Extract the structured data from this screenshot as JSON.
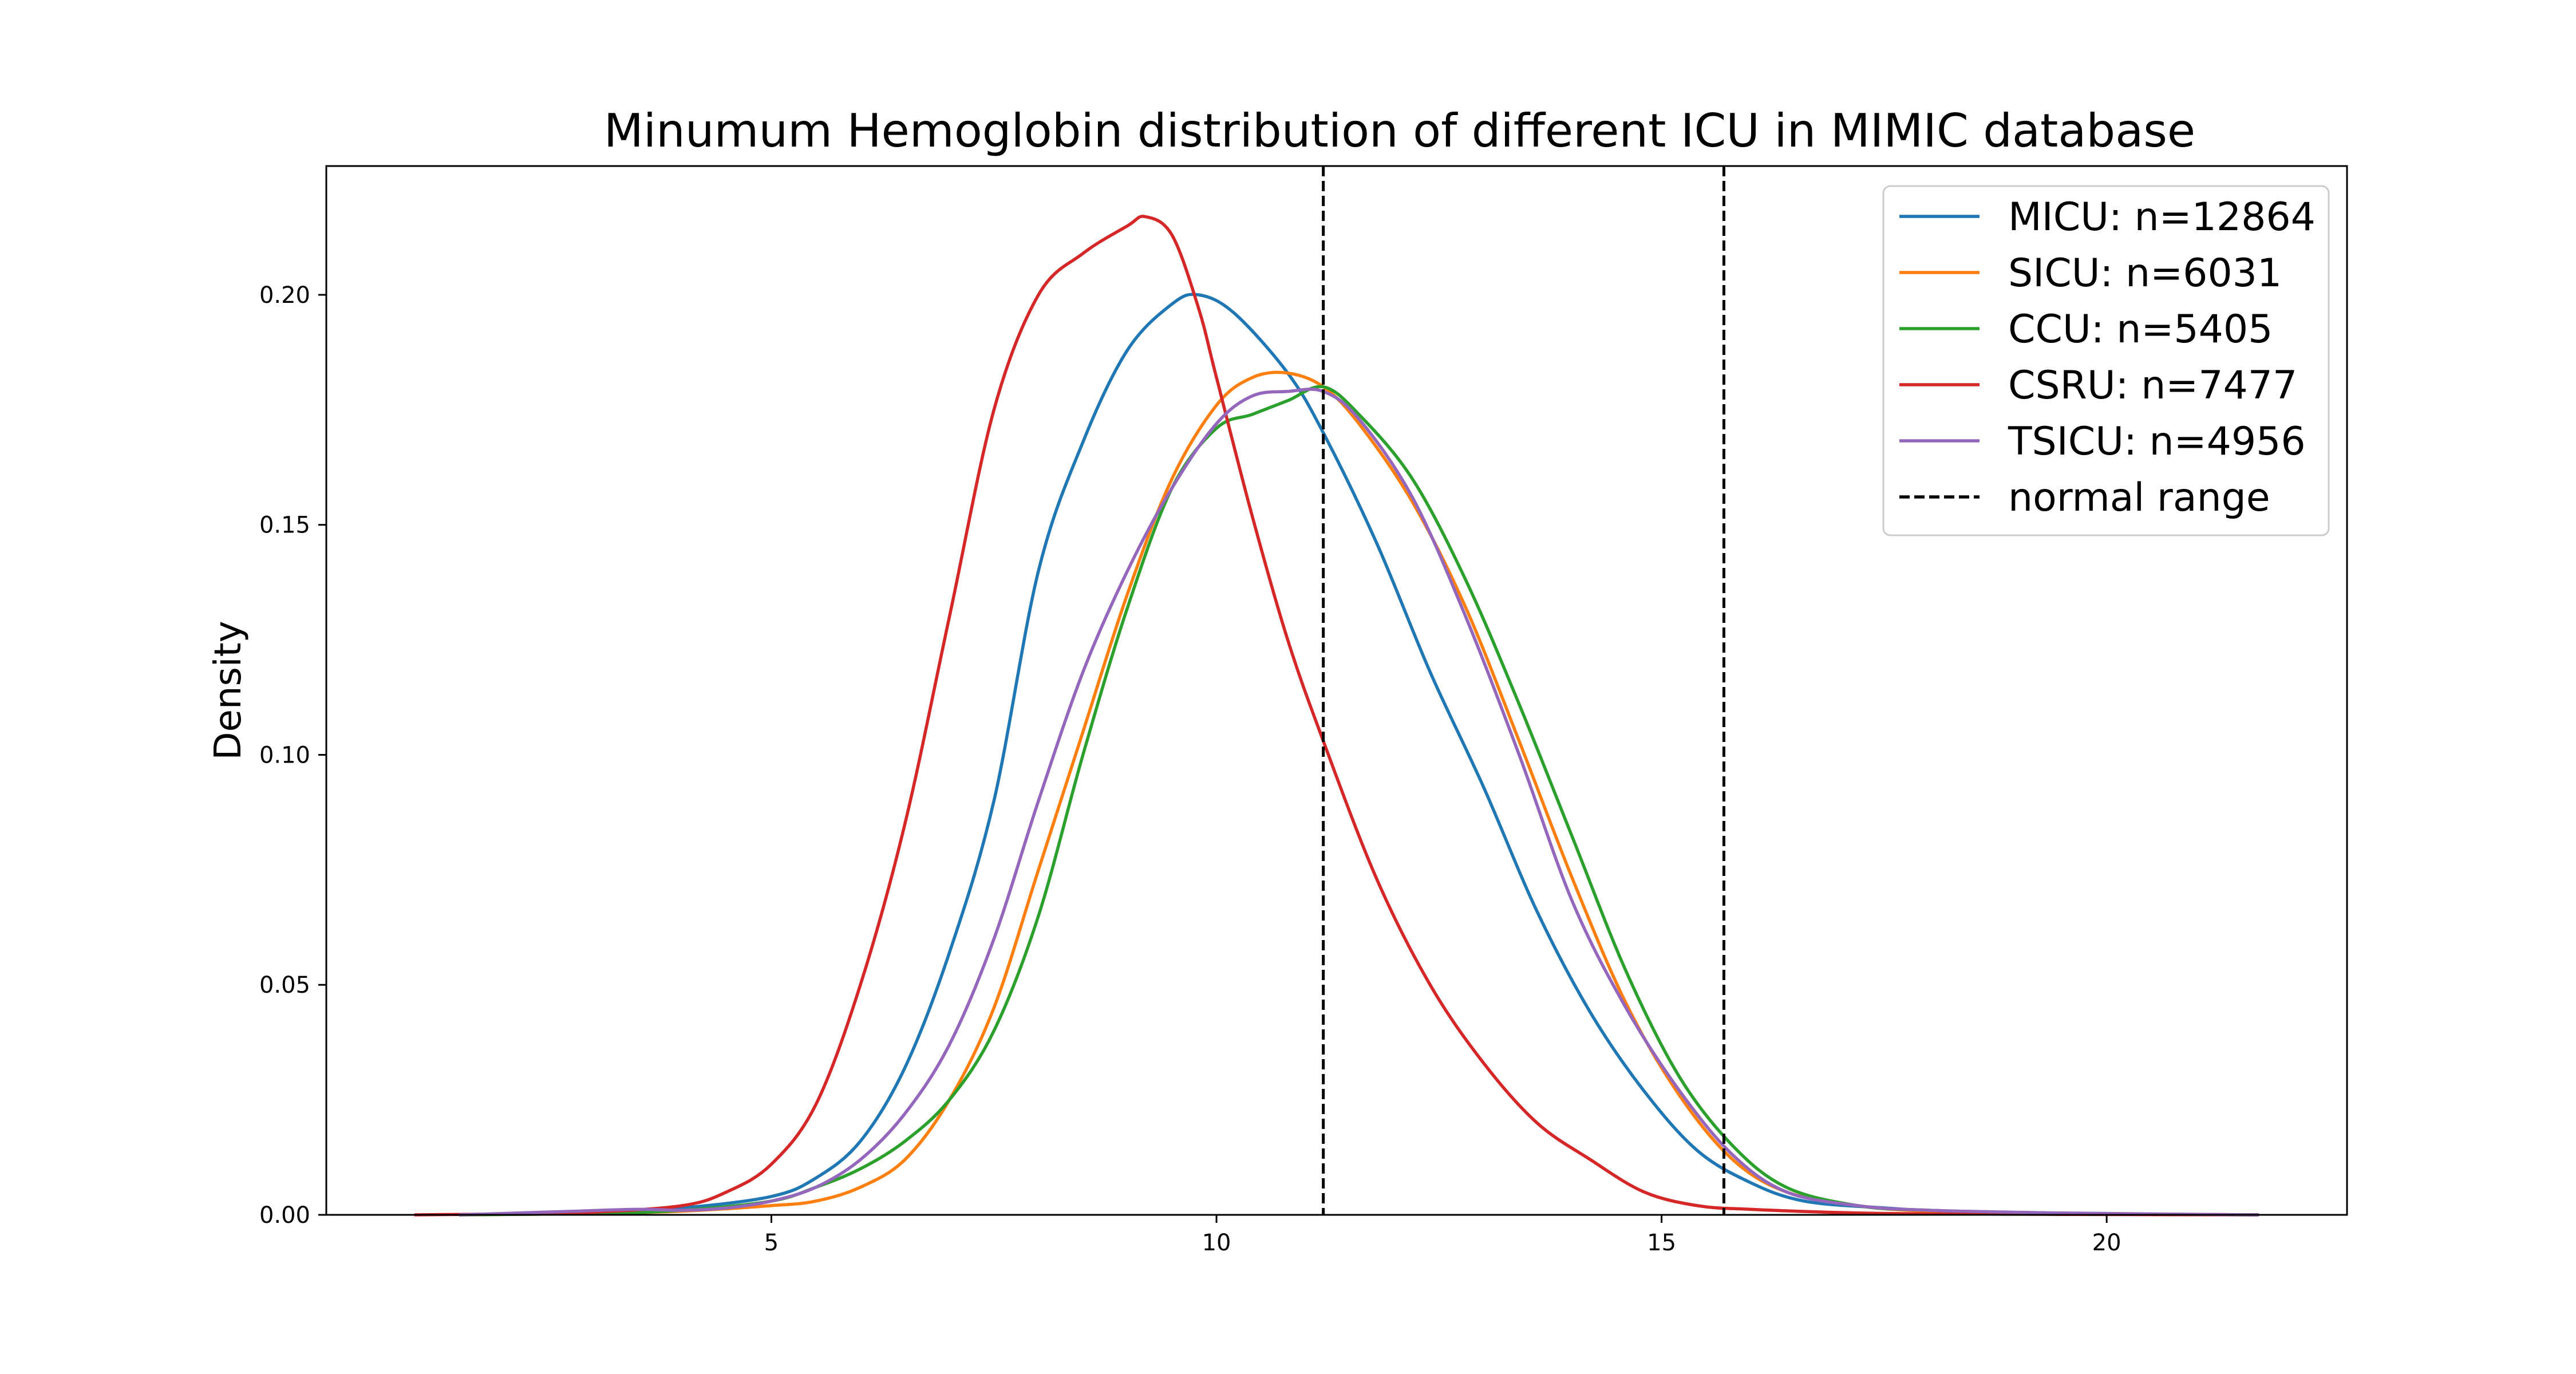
{
  "chart_data": {
    "type": "line",
    "title": "Minumum Hemoglobin distribution of different ICU in MIMIC database",
    "xlabel": "",
    "ylabel": "Density",
    "xlim": [
      0,
      22.7
    ],
    "ylim": [
      0,
      0.228
    ],
    "x_ticks": [
      {
        "value": 5,
        "label": "5"
      },
      {
        "value": 10,
        "label": "10"
      },
      {
        "value": 15,
        "label": "15"
      },
      {
        "value": 20,
        "label": "20"
      }
    ],
    "y_ticks": [
      {
        "value": 0.0,
        "label": "0.00"
      },
      {
        "value": 0.05,
        "label": "0.05"
      },
      {
        "value": 0.1,
        "label": "0.10"
      },
      {
        "value": 0.15,
        "label": "0.15"
      },
      {
        "value": 0.2,
        "label": "0.20"
      }
    ],
    "grid": false,
    "legend_position": "top-right",
    "series": [
      {
        "name": "MICU: n=12864",
        "color": "#1f77b4",
        "x": [
          1.5,
          3,
          4,
          5,
          5.5,
          6,
          6.5,
          7,
          7.5,
          8,
          8.5,
          9,
          9.5,
          9.8,
          10.2,
          10.8,
          11.2,
          11.8,
          12.4,
          13,
          13.6,
          14.2,
          14.8,
          15.4,
          16,
          16.6,
          17.5,
          18.5,
          20,
          21.7
        ],
        "y": [
          0.0,
          0.0005,
          0.0015,
          0.004,
          0.008,
          0.016,
          0.032,
          0.057,
          0.09,
          0.14,
          0.168,
          0.188,
          0.198,
          0.2,
          0.196,
          0.183,
          0.17,
          0.146,
          0.118,
          0.093,
          0.066,
          0.044,
          0.027,
          0.014,
          0.007,
          0.003,
          0.0015,
          0.0005,
          0.0002,
          0.0
        ],
        "label_key": "chart_data.series.0.name"
      },
      {
        "name": "SICU: n=6031",
        "color": "#ff7f0e",
        "x": [
          1.5,
          3,
          4,
          5,
          5.5,
          6,
          6.5,
          7,
          7.5,
          8,
          8.5,
          9,
          9.5,
          10,
          10.4,
          10.8,
          11.2,
          11.6,
          12.2,
          12.8,
          13.4,
          14,
          14.6,
          15.2,
          15.8,
          16.4,
          17.2,
          18,
          19.5,
          21.7
        ],
        "y": [
          0.0,
          0.0003,
          0.0008,
          0.002,
          0.003,
          0.006,
          0.012,
          0.025,
          0.045,
          0.075,
          0.105,
          0.135,
          0.16,
          0.176,
          0.182,
          0.183,
          0.18,
          0.172,
          0.155,
          0.132,
          0.103,
          0.073,
          0.046,
          0.026,
          0.012,
          0.005,
          0.002,
          0.0008,
          0.0003,
          0.0
        ],
        "label_key": "chart_data.series.1.name"
      },
      {
        "name": "CCU: n=5405",
        "color": "#2ca02c",
        "x": [
          1.5,
          3,
          4,
          5,
          5.5,
          6,
          6.5,
          7,
          7.5,
          8,
          8.5,
          9,
          9.5,
          10,
          10.4,
          10.8,
          11.2,
          11.6,
          12.2,
          12.8,
          13.4,
          14,
          14.6,
          15.2,
          15.8,
          16.4,
          17.2,
          18,
          19.5,
          21.7
        ],
        "y": [
          0.0,
          0.0003,
          0.001,
          0.003,
          0.006,
          0.01,
          0.016,
          0.025,
          0.04,
          0.065,
          0.1,
          0.132,
          0.158,
          0.171,
          0.174,
          0.177,
          0.18,
          0.174,
          0.16,
          0.138,
          0.111,
          0.082,
          0.053,
          0.03,
          0.015,
          0.006,
          0.002,
          0.001,
          0.0003,
          0.0
        ],
        "label_key": "chart_data.series.2.name"
      },
      {
        "name": "CSRU: n=7477",
        "color": "#d62728",
        "x": [
          1,
          2,
          3,
          4,
          4.5,
          5,
          5.5,
          6,
          6.5,
          7,
          7.5,
          8,
          8.5,
          9,
          9.2,
          9.5,
          9.8,
          10,
          10.4,
          10.8,
          11.2,
          11.8,
          12.4,
          13,
          13.6,
          14.2,
          14.8,
          15.4,
          16,
          17,
          18,
          19.5,
          21.7
        ],
        "y": [
          0.0,
          0.0002,
          0.0006,
          0.002,
          0.005,
          0.011,
          0.024,
          0.05,
          0.085,
          0.13,
          0.175,
          0.2,
          0.209,
          0.215,
          0.217,
          0.213,
          0.197,
          0.182,
          0.152,
          0.125,
          0.103,
          0.073,
          0.05,
          0.033,
          0.02,
          0.012,
          0.005,
          0.002,
          0.0012,
          0.0005,
          0.0002,
          0.0001,
          0.0
        ],
        "label_key": "chart_data.series.3.name"
      },
      {
        "name": "TSICU: n=4956",
        "color": "#9467bd",
        "x": [
          1.5,
          2.8,
          3.5,
          4,
          4.5,
          5,
          5.5,
          6,
          6.5,
          7,
          7.5,
          8,
          8.5,
          9,
          9.5,
          10,
          10.4,
          10.8,
          11.2,
          11.6,
          12.2,
          12.8,
          13.4,
          14,
          14.6,
          15.2,
          15.8,
          16.4,
          17.2,
          18,
          19.5,
          21.7
        ],
        "y": [
          0.0,
          0.0008,
          0.0012,
          0.001,
          0.0015,
          0.003,
          0.006,
          0.012,
          0.022,
          0.037,
          0.06,
          0.09,
          0.118,
          0.14,
          0.158,
          0.172,
          0.178,
          0.179,
          0.179,
          0.173,
          0.156,
          0.13,
          0.1,
          0.068,
          0.045,
          0.027,
          0.013,
          0.005,
          0.002,
          0.001,
          0.0004,
          0.0
        ],
        "label_key": "chart_data.series.4.name"
      }
    ],
    "reference_lines": {
      "name": "normal range",
      "color": "#000000",
      "style": "dashed",
      "x": [
        11.2,
        15.7
      ]
    }
  }
}
